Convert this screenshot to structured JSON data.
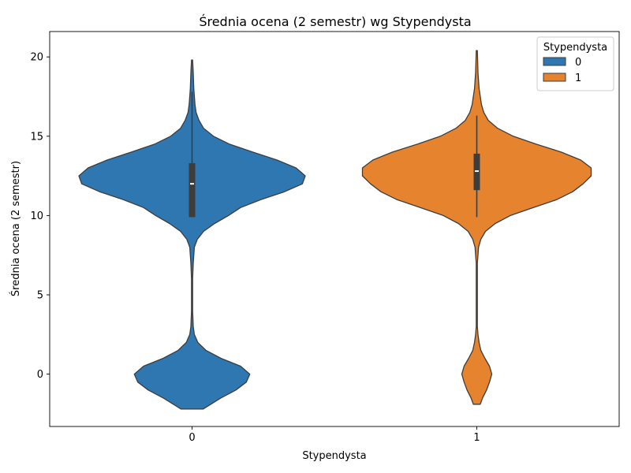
{
  "chart_data": {
    "type": "violin",
    "title": "Średnia ocena (2 semestr) wg Stypendysta",
    "xlabel": "Stypendysta",
    "ylabel": "Średnia ocena (2 semestr)",
    "categories": [
      "0",
      "1"
    ],
    "ylim": [
      -3.3,
      21.6
    ],
    "yticks": [
      0,
      5,
      10,
      15,
      20
    ],
    "grid": false,
    "legend": {
      "title": "Stypendysta",
      "placement": "top-right",
      "entries": [
        {
          "label": "0",
          "color": "#2f77b0"
        },
        {
          "label": "1",
          "color": "#e5832f"
        }
      ]
    },
    "series": [
      {
        "category": "0",
        "color": "#2f77b0",
        "range": [
          -2.2,
          19.8
        ],
        "quartiles": [
          9.9,
          12.0,
          13.3
        ],
        "whisker": [
          9.9,
          17.8
        ],
        "density": [
          [
            -2.2,
            0.19
          ],
          [
            -2.0,
            0.28
          ],
          [
            -1.5,
            0.5
          ],
          [
            -1.0,
            0.76
          ],
          [
            -0.5,
            0.94
          ],
          [
            0.0,
            1.0
          ],
          [
            0.5,
            0.84
          ],
          [
            1.0,
            0.5
          ],
          [
            1.5,
            0.24
          ],
          [
            2.0,
            0.1
          ],
          [
            2.5,
            0.04
          ],
          [
            3.0,
            0.02
          ],
          [
            4.0,
            0.01
          ],
          [
            5.0,
            0.01
          ],
          [
            6.0,
            0.01
          ],
          [
            7.0,
            0.02
          ],
          [
            7.5,
            0.03
          ],
          [
            8.0,
            0.04
          ],
          [
            8.5,
            0.09
          ],
          [
            9.0,
            0.2
          ],
          [
            9.5,
            0.39
          ],
          [
            10.0,
            0.63
          ],
          [
            10.5,
            0.84
          ],
          [
            11.0,
            1.19
          ],
          [
            11.5,
            1.6
          ],
          [
            12.0,
            1.91
          ],
          [
            12.5,
            1.96
          ],
          [
            13.0,
            1.8
          ],
          [
            13.5,
            1.47
          ],
          [
            14.0,
            1.05
          ],
          [
            14.5,
            0.65
          ],
          [
            15.0,
            0.37
          ],
          [
            15.5,
            0.2
          ],
          [
            16.0,
            0.12
          ],
          [
            16.5,
            0.07
          ],
          [
            17.0,
            0.05
          ],
          [
            18.0,
            0.03
          ],
          [
            19.0,
            0.02
          ],
          [
            19.8,
            0.01
          ]
        ]
      },
      {
        "category": "1",
        "color": "#e5832f",
        "range": [
          -1.9,
          20.4
        ],
        "quartiles": [
          11.6,
          12.8,
          13.9
        ],
        "whisker": [
          9.9,
          16.3
        ],
        "density": [
          [
            -1.9,
            0.06
          ],
          [
            -1.5,
            0.1
          ],
          [
            -1.0,
            0.17
          ],
          [
            -0.5,
            0.22
          ],
          [
            0.0,
            0.26
          ],
          [
            0.5,
            0.22
          ],
          [
            1.0,
            0.14
          ],
          [
            1.5,
            0.07
          ],
          [
            2.0,
            0.04
          ],
          [
            2.5,
            0.02
          ],
          [
            3.0,
            0.01
          ],
          [
            5.0,
            0.01
          ],
          [
            7.0,
            0.01
          ],
          [
            7.5,
            0.02
          ],
          [
            8.0,
            0.03
          ],
          [
            8.5,
            0.07
          ],
          [
            9.0,
            0.15
          ],
          [
            9.5,
            0.32
          ],
          [
            10.0,
            0.58
          ],
          [
            10.5,
            0.98
          ],
          [
            11.0,
            1.38
          ],
          [
            11.5,
            1.66
          ],
          [
            12.0,
            1.84
          ],
          [
            12.5,
            1.98
          ],
          [
            13.0,
            1.98
          ],
          [
            13.5,
            1.8
          ],
          [
            14.0,
            1.46
          ],
          [
            14.5,
            1.03
          ],
          [
            15.0,
            0.63
          ],
          [
            15.5,
            0.36
          ],
          [
            16.0,
            0.2
          ],
          [
            16.5,
            0.12
          ],
          [
            17.0,
            0.08
          ],
          [
            17.5,
            0.06
          ],
          [
            18.0,
            0.04
          ],
          [
            19.0,
            0.02
          ],
          [
            20.4,
            0.01
          ]
        ]
      }
    ]
  }
}
